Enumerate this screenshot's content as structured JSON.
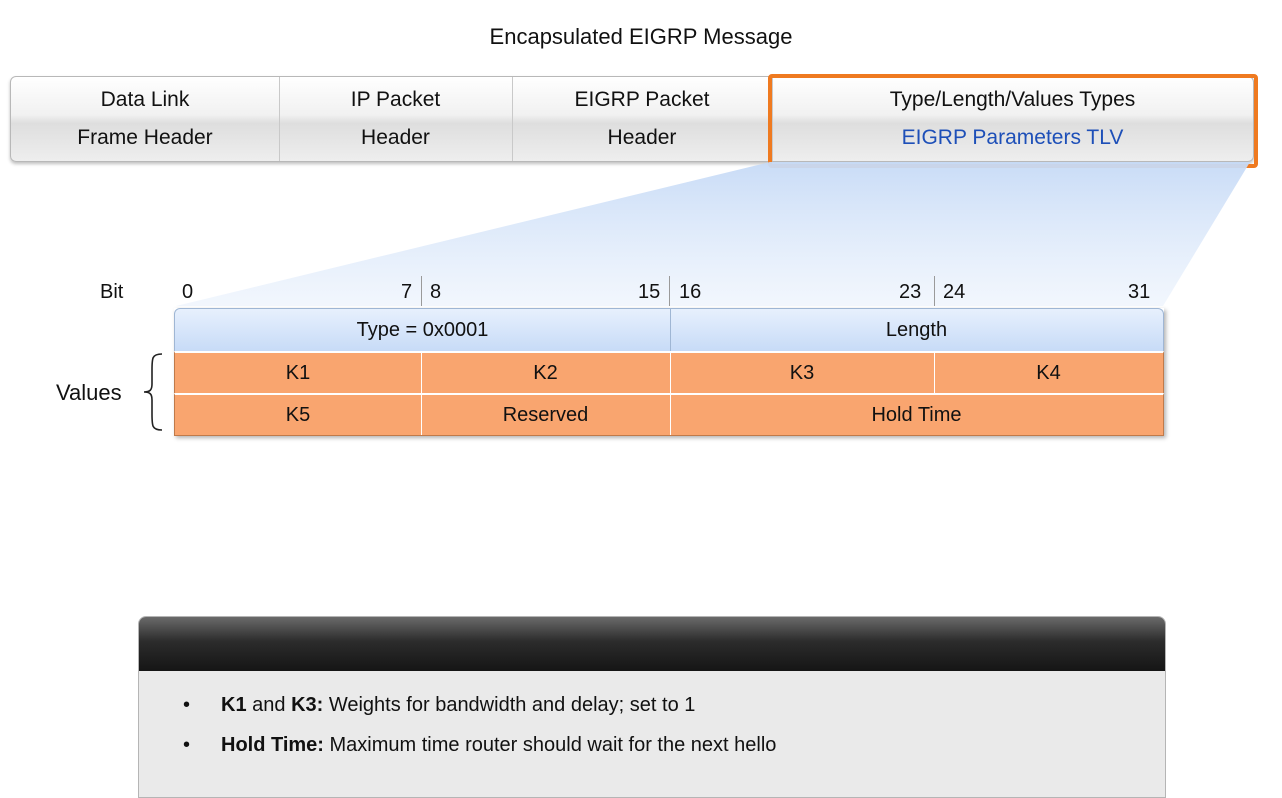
{
  "title": "Encapsulated EIGRP Message",
  "header_fields": [
    {
      "line1": "Data Link",
      "line2": "Frame Header"
    },
    {
      "line1": "IP Packet",
      "line2": "Header"
    },
    {
      "line1": "EIGRP Packet",
      "line2": "Header"
    },
    {
      "line1": "Type/Length/Values Types",
      "line2": "EIGRP Parameters TLV"
    }
  ],
  "colors": {
    "highlight": "#ef7a20",
    "tlv_text": "#1d4fb8",
    "header_row": "#c7dbf7",
    "values_rows": "#f9a56f"
  },
  "bit_label": "Bit",
  "bit_numbers": [
    "0",
    "7",
    "8",
    "15",
    "16",
    "23",
    "24",
    "31"
  ],
  "values_label": "Values",
  "packet_rows": [
    [
      "Type = 0x0001",
      "Length"
    ],
    [
      "K1",
      "K2",
      "K3",
      "K4"
    ],
    [
      "K5",
      "Reserved",
      "Hold Time"
    ]
  ],
  "info": {
    "bullets": [
      {
        "term": "K1",
        "mid": " and ",
        "term2": "K3:",
        "text": " Weights for bandwidth and delay; set to 1"
      },
      {
        "term": "Hold Time:",
        "text": " Maximum time router should wait for the next hello"
      }
    ]
  }
}
